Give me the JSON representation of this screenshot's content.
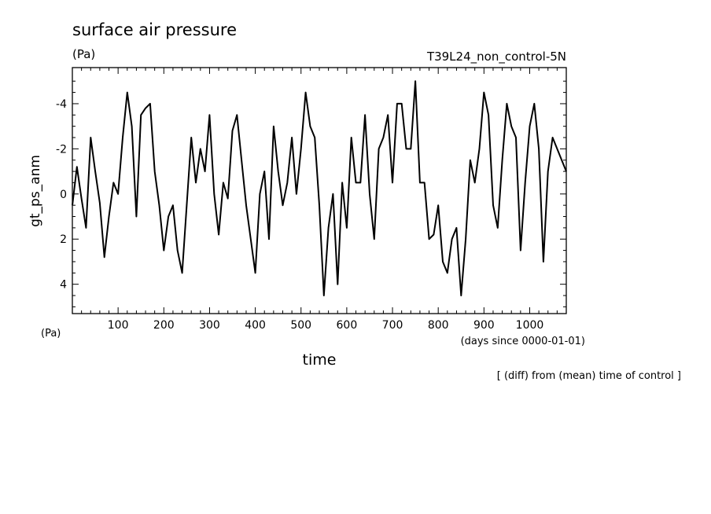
{
  "chart_data": {
    "type": "line",
    "title": "surface air pressure",
    "units_label": "(Pa)",
    "run_label": "T39L24_non_control-5N",
    "xlabel": "time",
    "x_units": "(days since 0000-01-01)",
    "ylabel": "gt_ps_anm",
    "y_units": "(Pa)",
    "note": "[ (diff) from (mean) time of control ]",
    "xlim": [
      0,
      1080
    ],
    "ylim": [
      5.3,
      -5.6
    ],
    "y_inverted": true,
    "x_ticks": [
      100,
      200,
      300,
      400,
      500,
      600,
      700,
      800,
      900,
      1000
    ],
    "y_ticks": [
      -4,
      -2,
      0,
      2,
      4
    ],
    "grid": false,
    "x": [
      0,
      10,
      20,
      30,
      40,
      50,
      60,
      70,
      80,
      90,
      100,
      110,
      120,
      130,
      140,
      150,
      160,
      170,
      180,
      190,
      200,
      210,
      220,
      230,
      240,
      250,
      260,
      270,
      280,
      290,
      300,
      310,
      320,
      330,
      340,
      350,
      360,
      370,
      380,
      390,
      400,
      410,
      420,
      430,
      440,
      450,
      460,
      470,
      480,
      490,
      500,
      510,
      520,
      530,
      540,
      550,
      560,
      570,
      580,
      590,
      600,
      610,
      620,
      630,
      640,
      650,
      660,
      670,
      680,
      690,
      700,
      710,
      720,
      730,
      740,
      750,
      760,
      770,
      780,
      790,
      800,
      810,
      820,
      830,
      840,
      850,
      860,
      870,
      880,
      890,
      900,
      910,
      920,
      930,
      940,
      950,
      960,
      970,
      980,
      990,
      1000,
      1010,
      1020,
      1030,
      1040,
      1050,
      1060,
      1070,
      1080
    ],
    "series": [
      {
        "values": [
          0.5,
          -1.2,
          0.2,
          1.5,
          -2.5,
          -1.0,
          0.4,
          2.8,
          1.0,
          -0.5,
          0.0,
          -2.5,
          -4.5,
          -3.0,
          1.0,
          -3.5,
          -3.8,
          -4.0,
          -1.0,
          0.5,
          2.5,
          1.0,
          0.5,
          2.5,
          3.5,
          0.5,
          -2.5,
          -0.5,
          -2.0,
          -1.0,
          -3.5,
          0.0,
          1.8,
          -0.5,
          0.2,
          -2.8,
          -3.5,
          -1.5,
          0.5,
          2.0,
          3.5,
          0.0,
          -1.0,
          2.0,
          -3.0,
          -1.0,
          0.5,
          -0.5,
          -2.5,
          0.0,
          -2.0,
          -4.5,
          -3.0,
          -2.5,
          0.5,
          4.5,
          1.5,
          0.0,
          4.0,
          -0.5,
          1.5,
          -2.5,
          -0.5,
          -0.5,
          -3.5,
          0.0,
          2.0,
          -2.0,
          -2.5,
          -3.5,
          -0.5,
          -4.0,
          -4.0,
          -2.0,
          -2.0,
          -5.0,
          -0.5,
          -0.5,
          2.0,
          1.8,
          0.5,
          3.0,
          3.5,
          2.0,
          1.5,
          4.5,
          2.0,
          -1.5,
          -0.5,
          -2.0,
          -4.5,
          -3.5,
          0.5,
          1.5,
          -1.5,
          -4.0,
          -3.0,
          -2.5,
          2.5,
          -0.5,
          -3.0,
          -4.0,
          -2.0,
          3.0,
          -1.0,
          -2.5,
          -2.0,
          -1.5,
          -1.0
        ]
      }
    ]
  }
}
